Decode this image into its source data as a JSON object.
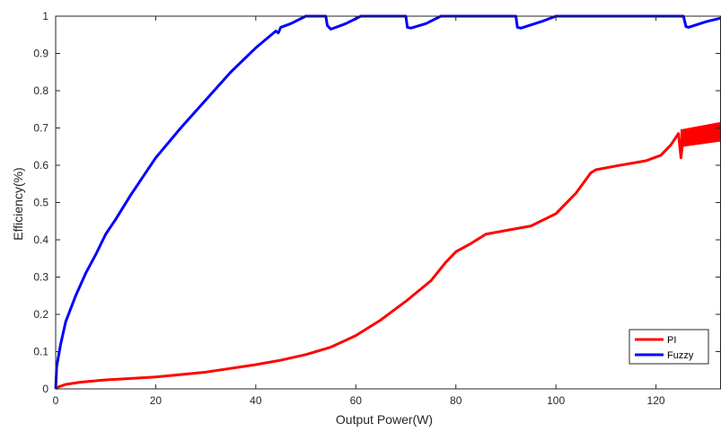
{
  "chart_data": {
    "type": "line",
    "xlabel": "Output Power(W)",
    "ylabel": "Efficiency(%)",
    "xlim": [
      0,
      133
    ],
    "ylim": [
      0,
      1
    ],
    "xticks": [
      0,
      20,
      40,
      60,
      80,
      100,
      120
    ],
    "yticks": [
      0,
      0.1,
      0.2,
      0.3,
      0.4,
      0.5,
      0.6,
      0.7,
      0.8,
      0.9,
      1
    ],
    "grid": false,
    "legend_position": "bottom-right",
    "series": [
      {
        "name": "PI",
        "color": "#ff0000",
        "points": [
          [
            0,
            0
          ],
          [
            0.5,
            0.005
          ],
          [
            2,
            0.012
          ],
          [
            5,
            0.018
          ],
          [
            10,
            0.024
          ],
          [
            20,
            0.032
          ],
          [
            30,
            0.045
          ],
          [
            40,
            0.065
          ],
          [
            45,
            0.077
          ],
          [
            50,
            0.092
          ],
          [
            55,
            0.112
          ],
          [
            60,
            0.143
          ],
          [
            65,
            0.185
          ],
          [
            70,
            0.235
          ],
          [
            75,
            0.29
          ],
          [
            78,
            0.34
          ],
          [
            80,
            0.368
          ],
          [
            83,
            0.39
          ],
          [
            86,
            0.415
          ],
          [
            90,
            0.425
          ],
          [
            95,
            0.437
          ],
          [
            100,
            0.47
          ],
          [
            104,
            0.525
          ],
          [
            107,
            0.58
          ],
          [
            108,
            0.588
          ],
          [
            112,
            0.598
          ],
          [
            118,
            0.612
          ],
          [
            121,
            0.627
          ],
          [
            123,
            0.655
          ],
          [
            124.5,
            0.685
          ],
          [
            125,
            0.62
          ],
          [
            125.5,
            0.68
          ],
          [
            128,
            0.682
          ],
          [
            130,
            0.685
          ],
          [
            133,
            0.688
          ]
        ],
        "band": {
          "x_start": 125,
          "x_end": 133,
          "lower": [
            0.65,
            0.665
          ],
          "upper": [
            0.695,
            0.715
          ]
        }
      },
      {
        "name": "Fuzzy",
        "color": "#0000ff",
        "points": [
          [
            0,
            0
          ],
          [
            0.2,
            0.06
          ],
          [
            1,
            0.12
          ],
          [
            2,
            0.18
          ],
          [
            4,
            0.25
          ],
          [
            6,
            0.31
          ],
          [
            8,
            0.36
          ],
          [
            10,
            0.415
          ],
          [
            12,
            0.455
          ],
          [
            15,
            0.52
          ],
          [
            20,
            0.62
          ],
          [
            25,
            0.7
          ],
          [
            30,
            0.775
          ],
          [
            35,
            0.85
          ],
          [
            40,
            0.915
          ],
          [
            44,
            0.96
          ],
          [
            44.5,
            0.955
          ],
          [
            45,
            0.97
          ],
          [
            47,
            0.98
          ],
          [
            50,
            1
          ],
          [
            54,
            1
          ],
          [
            54.3,
            0.975
          ],
          [
            55,
            0.965
          ],
          [
            58,
            0.98
          ],
          [
            61,
            1
          ],
          [
            70,
            1
          ],
          [
            70.3,
            0.97
          ],
          [
            71,
            0.968
          ],
          [
            74,
            0.98
          ],
          [
            77,
            1
          ],
          [
            92,
            1
          ],
          [
            92.3,
            0.97
          ],
          [
            93,
            0.968
          ],
          [
            97,
            0.985
          ],
          [
            100,
            1
          ],
          [
            125.5,
            1
          ],
          [
            126,
            0.972
          ],
          [
            126.5,
            0.97
          ],
          [
            130,
            0.985
          ],
          [
            133,
            0.995
          ]
        ]
      }
    ]
  }
}
